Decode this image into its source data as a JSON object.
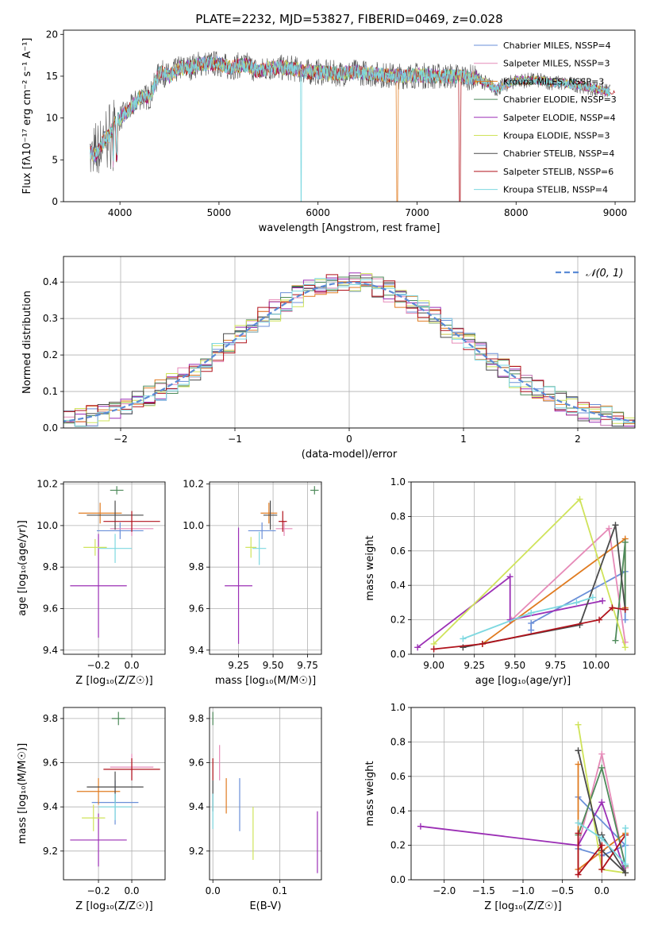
{
  "figure_title": "PLATE=2232, MJD=53827, FIBERID=0469, z=0.028",
  "colors": {
    "series": [
      "#6a8fd8",
      "#e68ab8",
      "#e07b20",
      "#4e8a5a",
      "#9b2fb5",
      "#cfe35a",
      "#4a4a4a",
      "#b0121b",
      "#7dd8e0"
    ]
  },
  "chart_data": [
    {
      "id": "spectrum",
      "type": "line",
      "title": "PLATE=2232, MJD=53827, FIBERID=0469, z=0.028",
      "xlabel": "wavelength [Angstrom, rest frame]",
      "ylabel": "Flux [fλ10⁻¹⁷ erg cm⁻² s⁻¹ A⁻¹]",
      "xlim": [
        3430,
        9200
      ],
      "ylim": [
        0,
        20.5
      ],
      "xticks": [
        4000,
        5000,
        6000,
        7000,
        8000,
        9000
      ],
      "yticks": [
        0,
        5,
        10,
        15,
        20
      ],
      "grid": false,
      "legend_placement": "top-right",
      "x": [
        3700,
        3750,
        3800,
        3850,
        3900,
        3950,
        4000,
        4100,
        4200,
        4300,
        4400,
        4500,
        4600,
        4700,
        4800,
        4900,
        5000,
        5100,
        5200,
        5300,
        5400,
        5500,
        5600,
        5700,
        5800,
        5900,
        6000,
        6200,
        6400,
        6600,
        6800,
        7000,
        7200,
        7400,
        7600,
        7800,
        8000,
        8200,
        8400,
        8600,
        8800,
        9000
      ],
      "y": [
        6.0,
        5.5,
        6.5,
        7.5,
        8.0,
        9.5,
        10.0,
        11.0,
        12.5,
        12.5,
        15.5,
        15.0,
        16.0,
        16.0,
        16.5,
        16.5,
        16.5,
        16.0,
        16.3,
        16.3,
        15.5,
        16.0,
        16.0,
        16.0,
        15.8,
        15.5,
        15.5,
        15.3,
        15.5,
        15.2,
        15.0,
        15.1,
        15.0,
        15.0,
        14.8,
        13.5,
        14.5,
        14.5,
        14.2,
        14.0,
        13.5,
        13.0
      ],
      "series": [
        {
          "name": "Chabrier MILES, N$_{SSP}$=4"
        },
        {
          "name": "Salpeter MILES, N$_{SSP}$=3"
        },
        {
          "name": "Kroupa MILES, N$_{SSP}$=3"
        },
        {
          "name": "Chabrier ELODIE, N$_{SSP}$=3"
        },
        {
          "name": "Salpeter ELODIE, N$_{SSP}$=4"
        },
        {
          "name": "Kroupa ELODIE, N$_{SSP}$=3"
        },
        {
          "name": "Chabrier STELIB, N$_{SSP}$=4"
        },
        {
          "name": "Salpeter STELIB, N$_{SSP}$=6"
        },
        {
          "name": "Kroupa STELIB, N$_{SSP}$=4"
        }
      ]
    },
    {
      "id": "residuals",
      "type": "line",
      "title": "",
      "xlabel": "(data-model)/error",
      "ylabel": "Normed distribution",
      "xlim": [
        -2.5,
        2.5
      ],
      "ylim": [
        0,
        0.47
      ],
      "xticks": [
        -2,
        -1,
        0,
        1,
        2
      ],
      "yticks": [
        0.0,
        0.1,
        0.2,
        0.3,
        0.4
      ],
      "grid": true,
      "legend_placement": "top-right",
      "legend": "𝒩(0, 1)",
      "bin_width": 0.1
    },
    {
      "id": "age_vs_Z",
      "type": "scatter",
      "xlabel": "Z [log₁₀(Z/Z☉)]",
      "ylabel": "age  [log₁₀(age/yr)]",
      "xlim": [
        -0.41,
        0.2
      ],
      "ylim": [
        9.38,
        10.21
      ],
      "xticks": [
        -0.2,
        0.0
      ],
      "yticks": [
        9.4,
        9.6,
        9.8,
        10.0,
        10.2
      ],
      "grid": true,
      "points": [
        {
          "x": -0.07,
          "y": 9.975,
          "xerr": 0.14,
          "yerr": 0.04
        },
        {
          "x": 0.0,
          "y": 9.985,
          "xerr": 0.13,
          "yerr": 0.035
        },
        {
          "x": -0.19,
          "y": 10.06,
          "xerr": 0.13,
          "yerr": 0.05
        },
        {
          "x": -0.09,
          "y": 10.17,
          "xerr": 0.04,
          "yerr": 0.02
        },
        {
          "x": -0.2,
          "y": 9.71,
          "xerr": 0.17,
          "yerr": 0.25
        },
        {
          "x": -0.22,
          "y": 9.895,
          "xerr": 0.07,
          "yerr": 0.04
        },
        {
          "x": -0.1,
          "y": 10.05,
          "xerr": 0.17,
          "yerr": 0.07
        },
        {
          "x": 0.0,
          "y": 10.02,
          "xerr": 0.17,
          "yerr": 0.05
        },
        {
          "x": -0.1,
          "y": 9.89,
          "xerr": 0.1,
          "yerr": 0.07
        }
      ]
    },
    {
      "id": "age_vs_mass",
      "type": "scatter",
      "xlabel": "mass [log₁₀(M/M☉)]",
      "ylabel": "",
      "xlim": [
        9.04,
        9.85
      ],
      "ylim": [
        9.38,
        10.21
      ],
      "xticks": [
        9.25,
        9.5,
        9.75
      ],
      "yticks": [
        9.4,
        9.6,
        9.8,
        10.0,
        10.2
      ],
      "grid": true,
      "points": [
        {
          "x": 9.42,
          "y": 9.975,
          "xerr": 0.1,
          "yerr": 0.04
        },
        {
          "x": 9.58,
          "y": 9.985,
          "xerr": 0.06,
          "yerr": 0.035
        },
        {
          "x": 9.47,
          "y": 10.06,
          "xerr": 0.06,
          "yerr": 0.05
        },
        {
          "x": 9.8,
          "y": 10.17,
          "xerr": 0.03,
          "yerr": 0.02
        },
        {
          "x": 9.25,
          "y": 9.71,
          "xerr": 0.1,
          "yerr": 0.28
        },
        {
          "x": 9.34,
          "y": 9.895,
          "xerr": 0.04,
          "yerr": 0.05
        },
        {
          "x": 9.48,
          "y": 10.05,
          "xerr": 0.05,
          "yerr": 0.07
        },
        {
          "x": 9.57,
          "y": 10.02,
          "xerr": 0.03,
          "yerr": 0.05
        },
        {
          "x": 9.4,
          "y": 9.89,
          "xerr": 0.05,
          "yerr": 0.08
        }
      ]
    },
    {
      "id": "massweight_vs_age",
      "type": "line",
      "xlabel": "age  [log₁₀(age/yr)]",
      "ylabel": "mass weight",
      "xlim": [
        8.86,
        10.24
      ],
      "ylim": [
        0,
        1
      ],
      "xticks": [
        9.0,
        9.25,
        9.5,
        9.75,
        10.0
      ],
      "yticks": [
        0.0,
        0.2,
        0.4,
        0.6,
        0.8,
        1.0
      ],
      "grid": true,
      "series": [
        {
          "x": [
            9.6,
            9.6,
            10.18,
            10.18
          ],
          "y": [
            0.14,
            0.18,
            0.48,
            0.2
          ]
        },
        {
          "x": [
            9.48,
            10.08,
            10.18
          ],
          "y": [
            0.2,
            0.73,
            0.07
          ]
        },
        {
          "x": [
            9.3,
            10.18,
            10.18
          ],
          "y": [
            0.06,
            0.67,
            0.27
          ]
        },
        {
          "x": [
            10.12,
            10.18,
            10.18
          ],
          "y": [
            0.08,
            0.65,
            0.26
          ]
        },
        {
          "x": [
            8.9,
            9.47,
            9.47,
            10.04
          ],
          "y": [
            0.04,
            0.45,
            0.2,
            0.31
          ]
        },
        {
          "x": [
            9.0,
            9.9,
            10.18
          ],
          "y": [
            0.06,
            0.9,
            0.04
          ]
        },
        {
          "x": [
            9.18,
            9.9,
            10.12,
            10.18
          ],
          "y": [
            0.04,
            0.17,
            0.75,
            0.26
          ]
        },
        {
          "x": [
            9.0,
            9.3,
            10.02,
            10.1,
            10.18
          ],
          "y": [
            0.03,
            0.06,
            0.2,
            0.27,
            0.26
          ]
        },
        {
          "x": [
            9.18,
            9.6,
            9.88,
            9.98
          ],
          "y": [
            0.09,
            0.24,
            0.3,
            0.33
          ]
        }
      ]
    },
    {
      "id": "mass_vs_Z",
      "type": "scatter",
      "xlabel": "Z [log₁₀(Z/Z☉)]",
      "ylabel": "mass [log₁₀(M/M☉)]",
      "xlim": [
        -0.41,
        0.2
      ],
      "ylim": [
        9.07,
        9.85
      ],
      "xticks": [
        -0.2,
        0.0
      ],
      "yticks": [
        9.2,
        9.4,
        9.6,
        9.8
      ],
      "grid": true,
      "points": [
        {
          "x": -0.1,
          "y": 9.42,
          "xerr": 0.14,
          "yerr": 0.1
        },
        {
          "x": 0.0,
          "y": 9.58,
          "xerr": 0.13,
          "yerr": 0.06
        },
        {
          "x": -0.2,
          "y": 9.47,
          "xerr": 0.13,
          "yerr": 0.06
        },
        {
          "x": -0.08,
          "y": 9.8,
          "xerr": 0.04,
          "yerr": 0.03
        },
        {
          "x": -0.2,
          "y": 9.25,
          "xerr": 0.17,
          "yerr": 0.12
        },
        {
          "x": -0.23,
          "y": 9.35,
          "xerr": 0.07,
          "yerr": 0.06
        },
        {
          "x": -0.1,
          "y": 9.49,
          "xerr": 0.17,
          "yerr": 0.07
        },
        {
          "x": -0.0,
          "y": 9.57,
          "xerr": 0.17,
          "yerr": 0.05
        },
        {
          "x": -0.1,
          "y": 9.4,
          "xerr": 0.1,
          "yerr": 0.06
        }
      ]
    },
    {
      "id": "mass_vs_ebv",
      "type": "scatter",
      "xlabel": "E(B-V)",
      "ylabel": "",
      "xlim": [
        -0.005,
        0.162
      ],
      "ylim": [
        9.07,
        9.85
      ],
      "xticks": [
        0.0,
        0.1
      ],
      "yticks": [
        9.2,
        9.4,
        9.6,
        9.8
      ],
      "grid": true,
      "points": [
        {
          "x": 0.04,
          "y": 9.41,
          "yerr": 0.12
        },
        {
          "x": 0.01,
          "y": 9.6,
          "yerr": 0.08
        },
        {
          "x": 0.02,
          "y": 9.45,
          "yerr": 0.08
        },
        {
          "x": 0.0,
          "y": 9.8,
          "yerr": 0.03
        },
        {
          "x": 0.156,
          "y": 9.24,
          "yerr": 0.14
        },
        {
          "x": 0.06,
          "y": 9.28,
          "yerr": 0.12
        },
        {
          "x": 0.0,
          "y": 9.45,
          "yerr": 0.07
        },
        {
          "x": 0.0,
          "y": 9.57,
          "yerr": 0.05
        },
        {
          "x": 0.0,
          "y": 9.38,
          "yerr": 0.08
        }
      ]
    },
    {
      "id": "massweight_vs_Z",
      "type": "line",
      "xlabel": "Z [log₁₀(Z/Z☉)]",
      "ylabel": "mass weight",
      "xlim": [
        -2.42,
        0.42
      ],
      "ylim": [
        0,
        1
      ],
      "xticks": [
        -2.0,
        -1.5,
        -1.0,
        -0.5,
        0.0
      ],
      "yticks": [
        0.0,
        0.2,
        0.4,
        0.6,
        0.8,
        1.0
      ],
      "grid": true,
      "series": [
        {
          "x": [
            -0.3,
            0.3,
            0.0,
            -0.3
          ],
          "y": [
            0.48,
            0.2,
            0.14,
            0.18
          ]
        },
        {
          "x": [
            -0.3,
            0.0,
            0.3
          ],
          "y": [
            0.2,
            0.73,
            0.07
          ]
        },
        {
          "x": [
            -0.3,
            -0.3,
            0.3
          ],
          "y": [
            0.67,
            0.06,
            0.27
          ]
        },
        {
          "x": [
            0.3,
            0.0,
            -0.3
          ],
          "y": [
            0.08,
            0.65,
            0.26
          ]
        },
        {
          "x": [
            -2.3,
            -0.3,
            0.0,
            0.3
          ],
          "y": [
            0.31,
            0.2,
            0.45,
            0.04
          ]
        },
        {
          "x": [
            -0.3,
            0.0,
            0.3
          ],
          "y": [
            0.9,
            0.06,
            0.04
          ]
        },
        {
          "x": [
            -0.3,
            0.0,
            0.3,
            0.0
          ],
          "y": [
            0.75,
            0.17,
            0.04,
            0.26
          ]
        },
        {
          "x": [
            -0.3,
            -0.3,
            0.0,
            0.0,
            0.3
          ],
          "y": [
            0.27,
            0.03,
            0.2,
            0.06,
            0.26
          ]
        },
        {
          "x": [
            -0.3,
            0.0,
            0.3,
            0.3
          ],
          "y": [
            0.33,
            0.24,
            0.09,
            0.3
          ]
        }
      ]
    }
  ]
}
